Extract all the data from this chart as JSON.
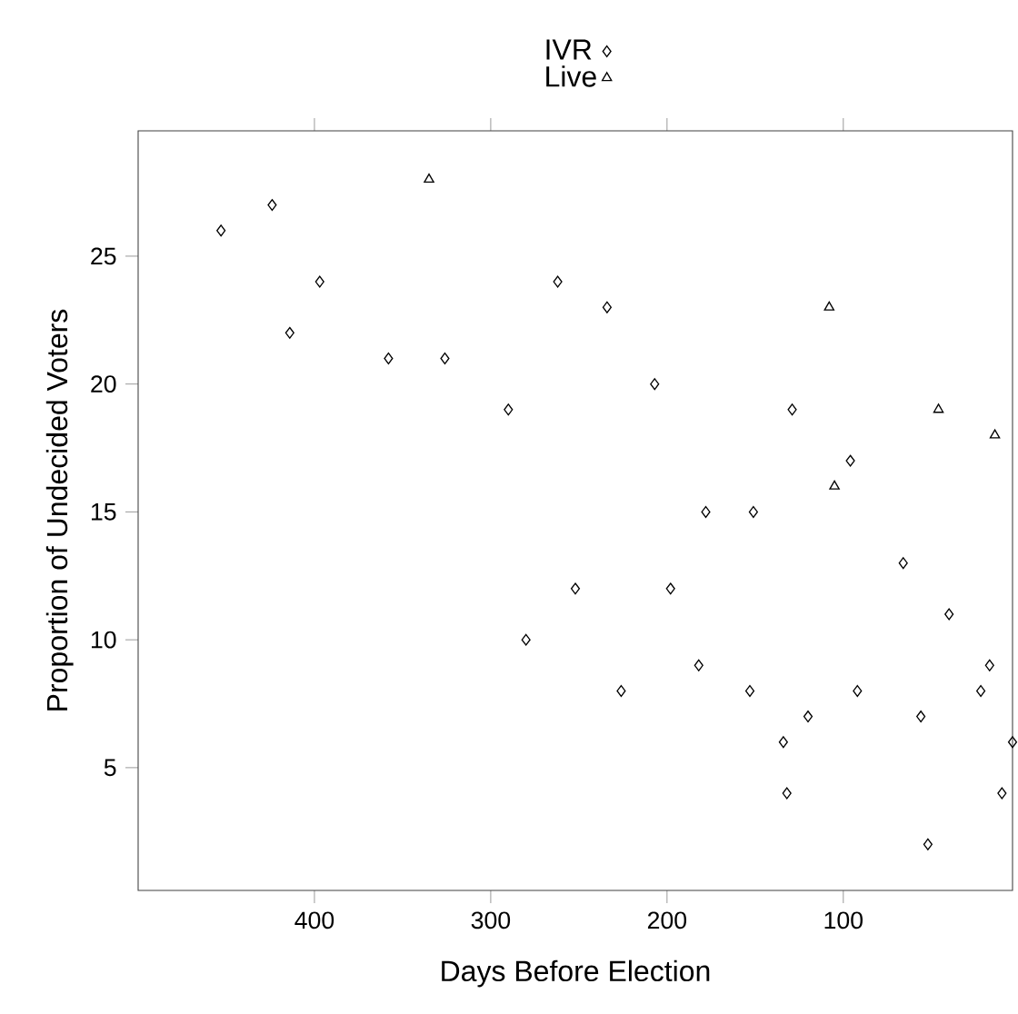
{
  "chart_data": {
    "type": "scatter",
    "xlabel": "Days Before Election",
    "ylabel": "Proportion of Undecided Voters",
    "xlim": [
      500,
      4
    ],
    "ylim": [
      0.2,
      29.9
    ],
    "xticks": [
      400,
      300,
      200,
      100
    ],
    "yticks": [
      5,
      10,
      15,
      20,
      25
    ],
    "grid": false,
    "legend": "top",
    "series": [
      {
        "name": "IVR",
        "color": "#000000",
        "marker": "diamond",
        "x": [
          453,
          424,
          397,
          414,
          358,
          326,
          290,
          262,
          234,
          207,
          129,
          96,
          178,
          151,
          66,
          280,
          252,
          198,
          226,
          182,
          153,
          134,
          132,
          120,
          92,
          40,
          56,
          52,
          22,
          17,
          4,
          10
        ],
        "values": [
          26,
          27,
          24,
          22,
          21,
          21,
          19,
          24,
          23,
          20,
          19,
          17,
          15,
          15,
          13,
          10,
          12,
          12,
          8,
          9,
          8,
          6,
          4,
          7,
          8,
          11,
          7,
          2,
          8,
          9,
          6,
          4
        ]
      },
      {
        "name": "Live",
        "color": "#000000",
        "marker": "triangle",
        "x": [
          335,
          108,
          46,
          14,
          105
        ],
        "values": [
          28,
          23,
          19,
          18,
          16
        ]
      }
    ]
  }
}
